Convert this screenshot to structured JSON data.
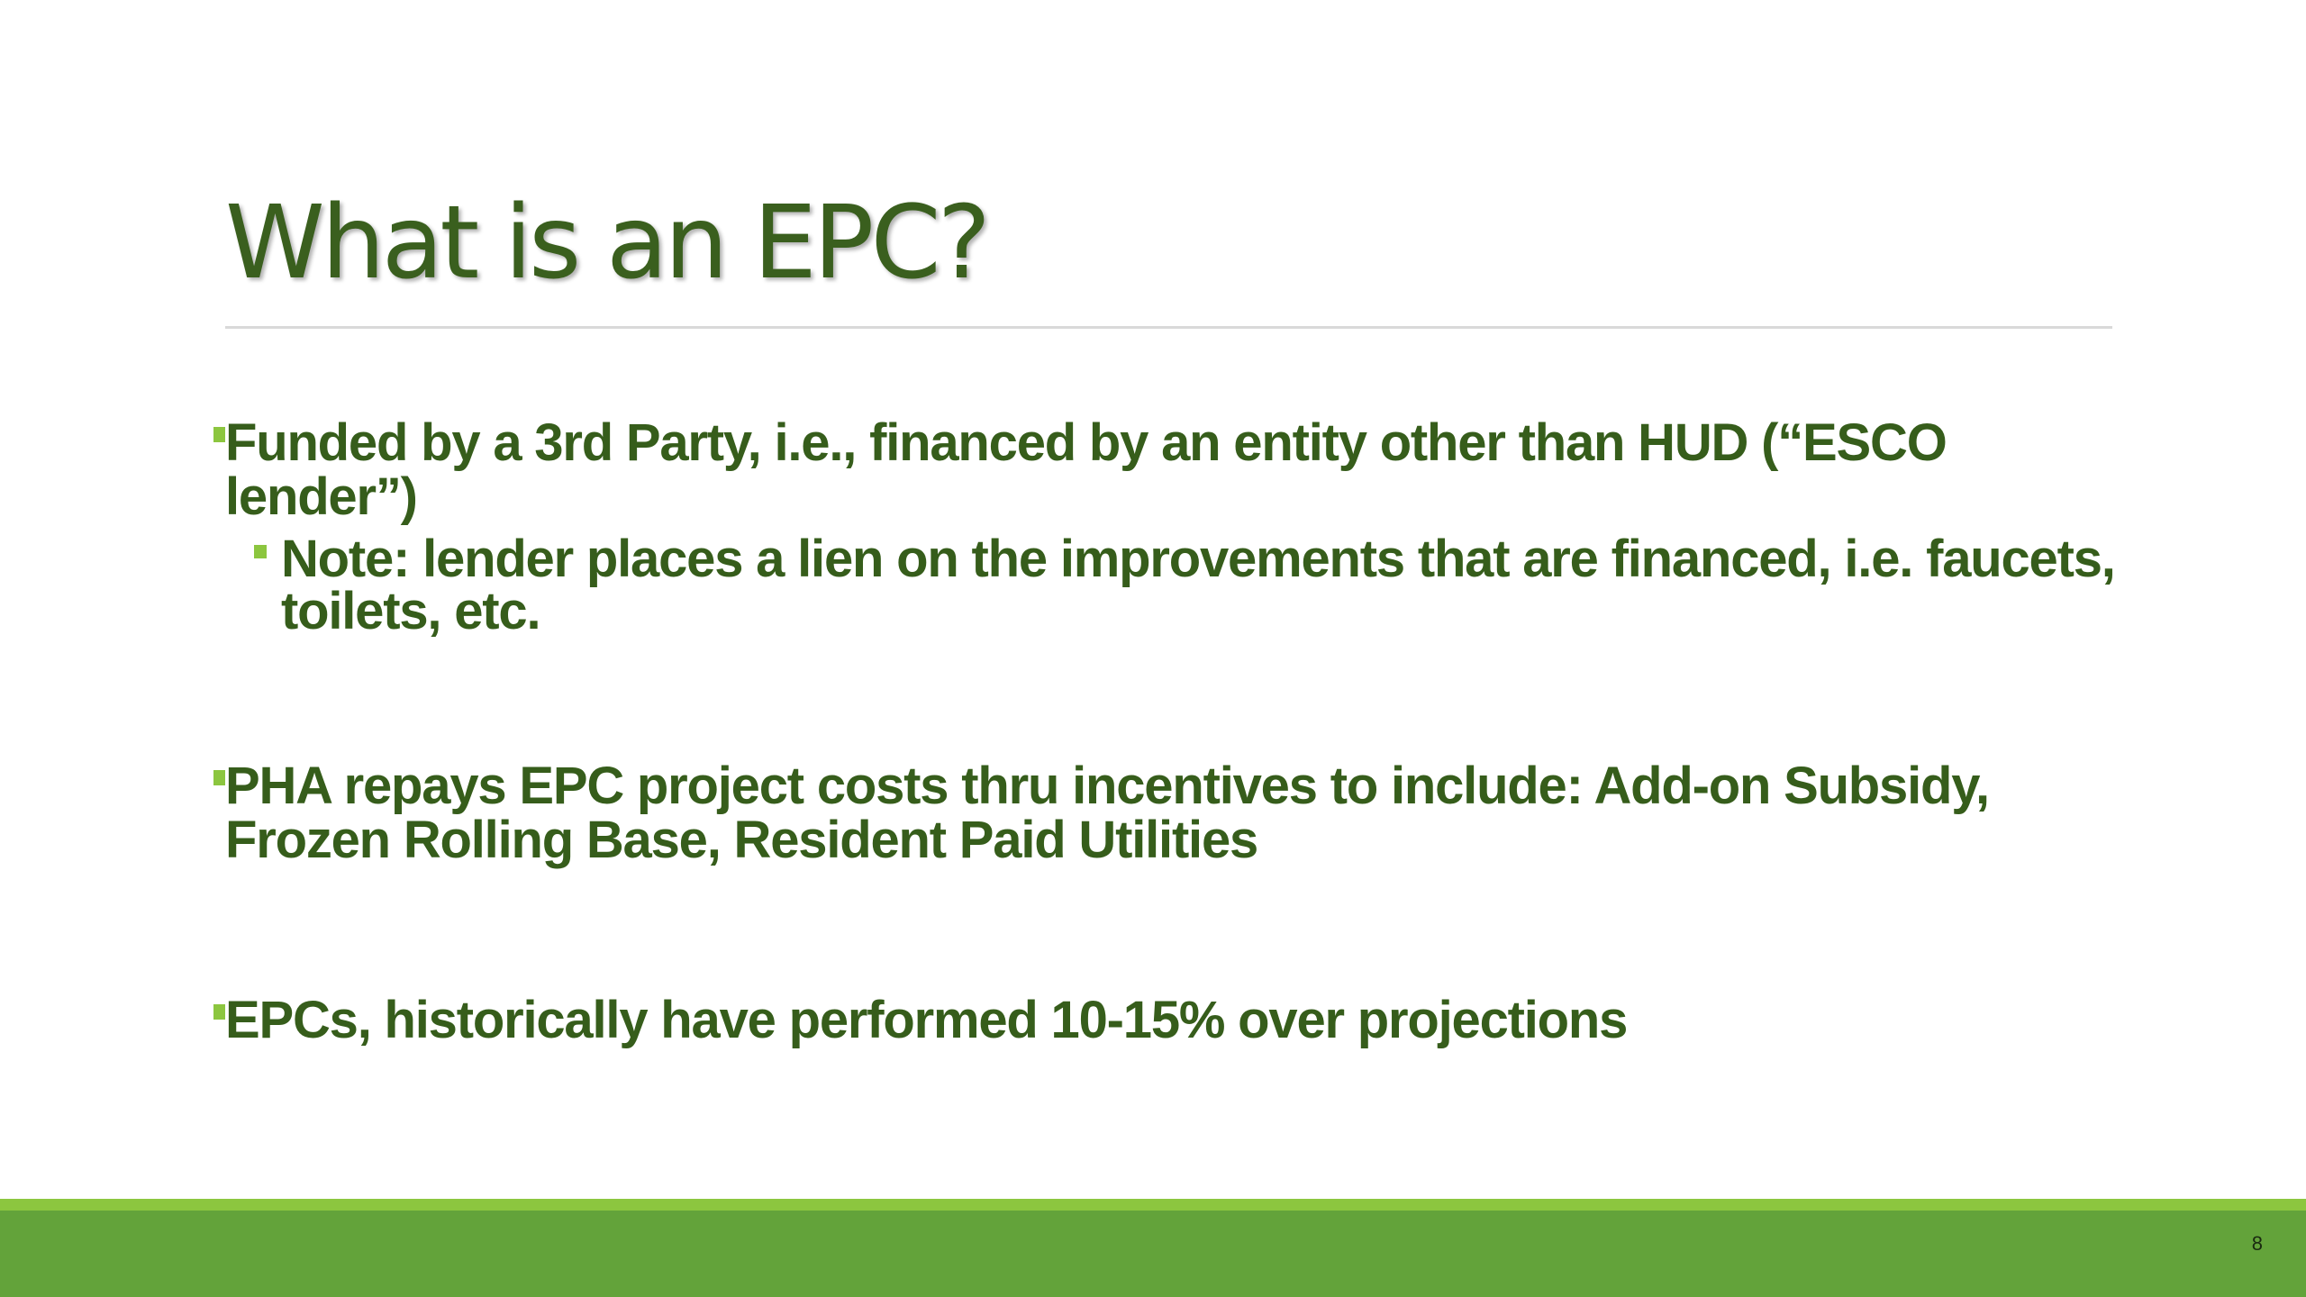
{
  "slide": {
    "title": "What is an EPC?",
    "bullets": [
      {
        "text": "Funded by a 3rd Party, i.e., financed by an entity other than HUD (“ESCO lender”)",
        "sub": "Note: lender places a lien on the improvements that are financed, i.e. faucets, toilets, etc."
      },
      {
        "text": "PHA repays EPC project costs thru incentives to include: Add-on Subsidy, Frozen Rolling Base, Resident Paid Utilities"
      },
      {
        "text": "EPCs, historically have performed 10-15% over projections"
      }
    ],
    "page_number": "8"
  },
  "colors": {
    "title": "#3a5f1e",
    "text": "#365d1b",
    "bullet": "#8cc63f",
    "band_light": "#8cc63f",
    "band": "#63a33a"
  }
}
